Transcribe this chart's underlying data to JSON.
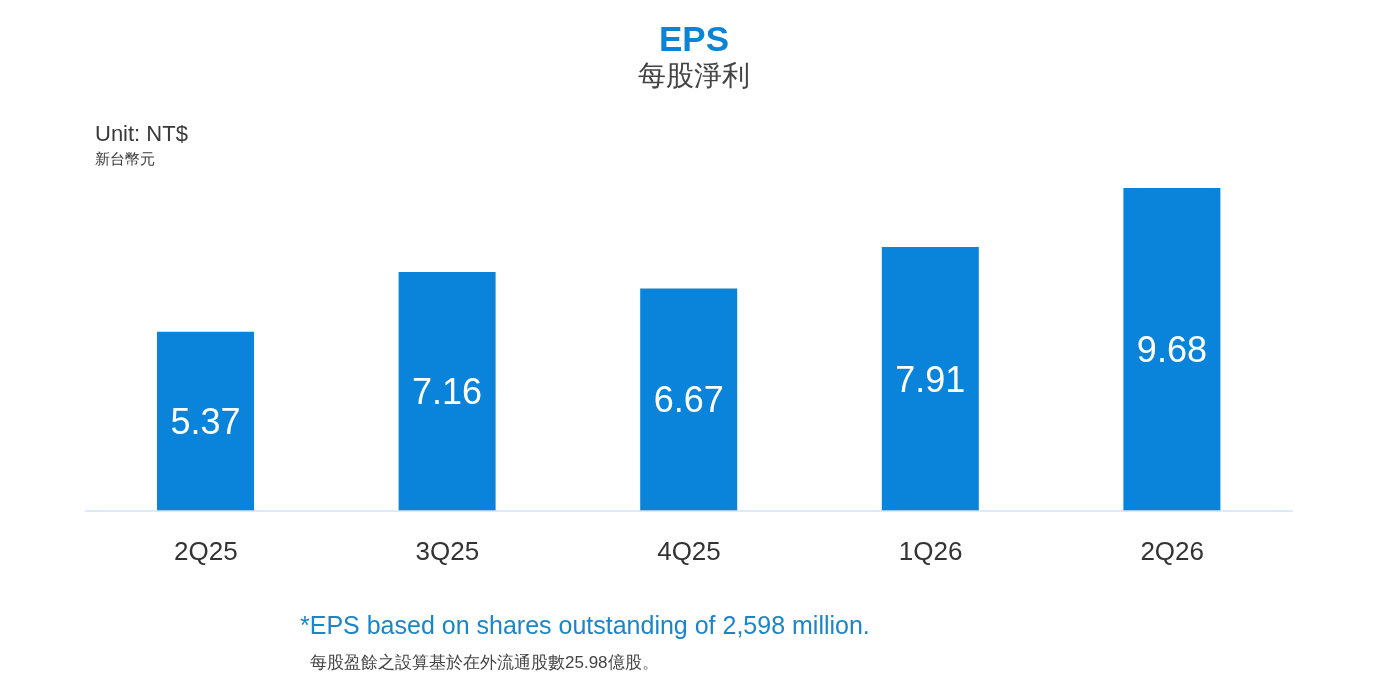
{
  "chart_data": {
    "type": "bar",
    "title": "EPS",
    "subtitle": "每股淨利",
    "ylabel": "Unit: NT$\n新台幣元",
    "categories": [
      "2Q25",
      "3Q25",
      "4Q25",
      "1Q26",
      "2Q26"
    ],
    "values": [
      5.37,
      7.16,
      6.67,
      7.91,
      9.68
    ],
    "color": "#0984da",
    "data_labels": true,
    "annotations": [
      "*EPS based on shares outstanding of 2,598 million.",
      "每股盈餘之設算基於在外流通股數25.98億股。"
    ]
  }
}
